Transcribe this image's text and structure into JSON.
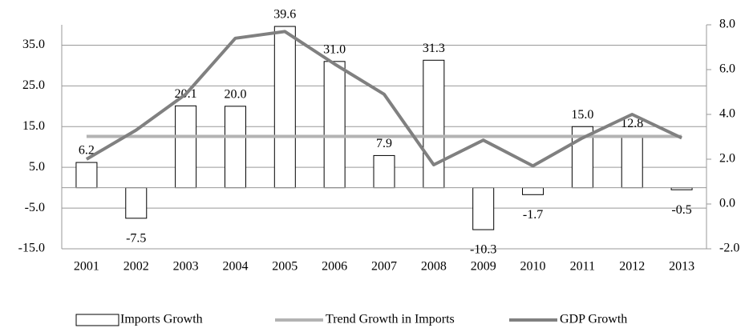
{
  "chart_data": {
    "type": "bar",
    "categories": [
      "2001",
      "2002",
      "2003",
      "2004",
      "2005",
      "2006",
      "2007",
      "2008",
      "2009",
      "2010",
      "2011",
      "2012",
      "2013"
    ],
    "series": [
      {
        "name": "Imports Growth",
        "type": "bar",
        "color": "#ffffff",
        "values": [
          6.2,
          -7.5,
          20.1,
          20.0,
          39.6,
          31.0,
          7.9,
          31.3,
          -10.3,
          -1.7,
          15.0,
          12.8,
          -0.5
        ],
        "value_labels": [
          "6.2",
          "-7.5",
          "20.1",
          "20.0",
          "39.6",
          "31.0",
          "7.9",
          "31.3",
          "-10.3",
          "-1.7",
          "15.0",
          "12.8",
          "-0.5"
        ]
      },
      {
        "name": "Trend Growth in Imports",
        "type": "line",
        "color": "#b3b3b3",
        "values": [
          12.6,
          12.6,
          12.6,
          12.6,
          12.6,
          12.6,
          12.6,
          12.6,
          12.6,
          12.6,
          12.6,
          12.6,
          12.6
        ]
      },
      {
        "name": "GDP Growth",
        "type": "line",
        "color": "#808080",
        "axis": "y2",
        "values": [
          2.0,
          3.3,
          4.9,
          7.4,
          7.7,
          6.25,
          4.9,
          1.75,
          2.85,
          1.7,
          2.95,
          4.0,
          2.95
        ]
      }
    ],
    "ylim": [
      -15,
      40
    ],
    "yticks": [
      {
        "value": -15,
        "label": "-15.0"
      },
      {
        "value": -5,
        "label": "-5.0"
      },
      {
        "value": 5,
        "label": "5.0"
      },
      {
        "value": 15,
        "label": "15.0"
      },
      {
        "value": 25,
        "label": "25.0"
      },
      {
        "value": 35,
        "label": "35.0"
      }
    ],
    "y2lim": [
      -2,
      8
    ],
    "y2ticks": [
      {
        "value": -2,
        "label": "-2.0"
      },
      {
        "value": 0,
        "label": "0.0"
      },
      {
        "value": 2,
        "label": "2.0"
      },
      {
        "value": 4,
        "label": "4.0"
      },
      {
        "value": 6,
        "label": "6.0"
      },
      {
        "value": 8,
        "label": "8.0"
      }
    ],
    "grid": true,
    "legend": "bottom"
  }
}
